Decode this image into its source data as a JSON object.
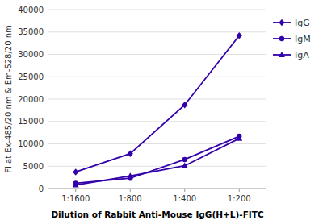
{
  "chart_data": {
    "type": "line",
    "categories": [
      "1:1600",
      "1:800",
      "1:400",
      "1:200"
    ],
    "series": [
      {
        "name": "IgG",
        "color": "#3300AA",
        "marker": "diamond",
        "values": [
          3700,
          7800,
          18700,
          34200
        ]
      },
      {
        "name": "IgM",
        "color": "#3300AA",
        "marker": "circle",
        "values": [
          1200,
          2300,
          6500,
          11700
        ]
      },
      {
        "name": "IgA",
        "color": "#3300AA",
        "marker": "triangle",
        "values": [
          800,
          2800,
          5100,
          11200
        ]
      }
    ],
    "ylabel": "FI at Ex-485/20 nm & Em-528/20 nm",
    "xlabel": "Dilution of Rabbit Anti-Mouse IgG(H+L)-FITC",
    "ylim": [
      0,
      40000
    ],
    "yticks": [
      0,
      5000,
      10000,
      15000,
      20000,
      25000,
      30000,
      35000,
      40000
    ],
    "grid": true,
    "legend": "right"
  }
}
